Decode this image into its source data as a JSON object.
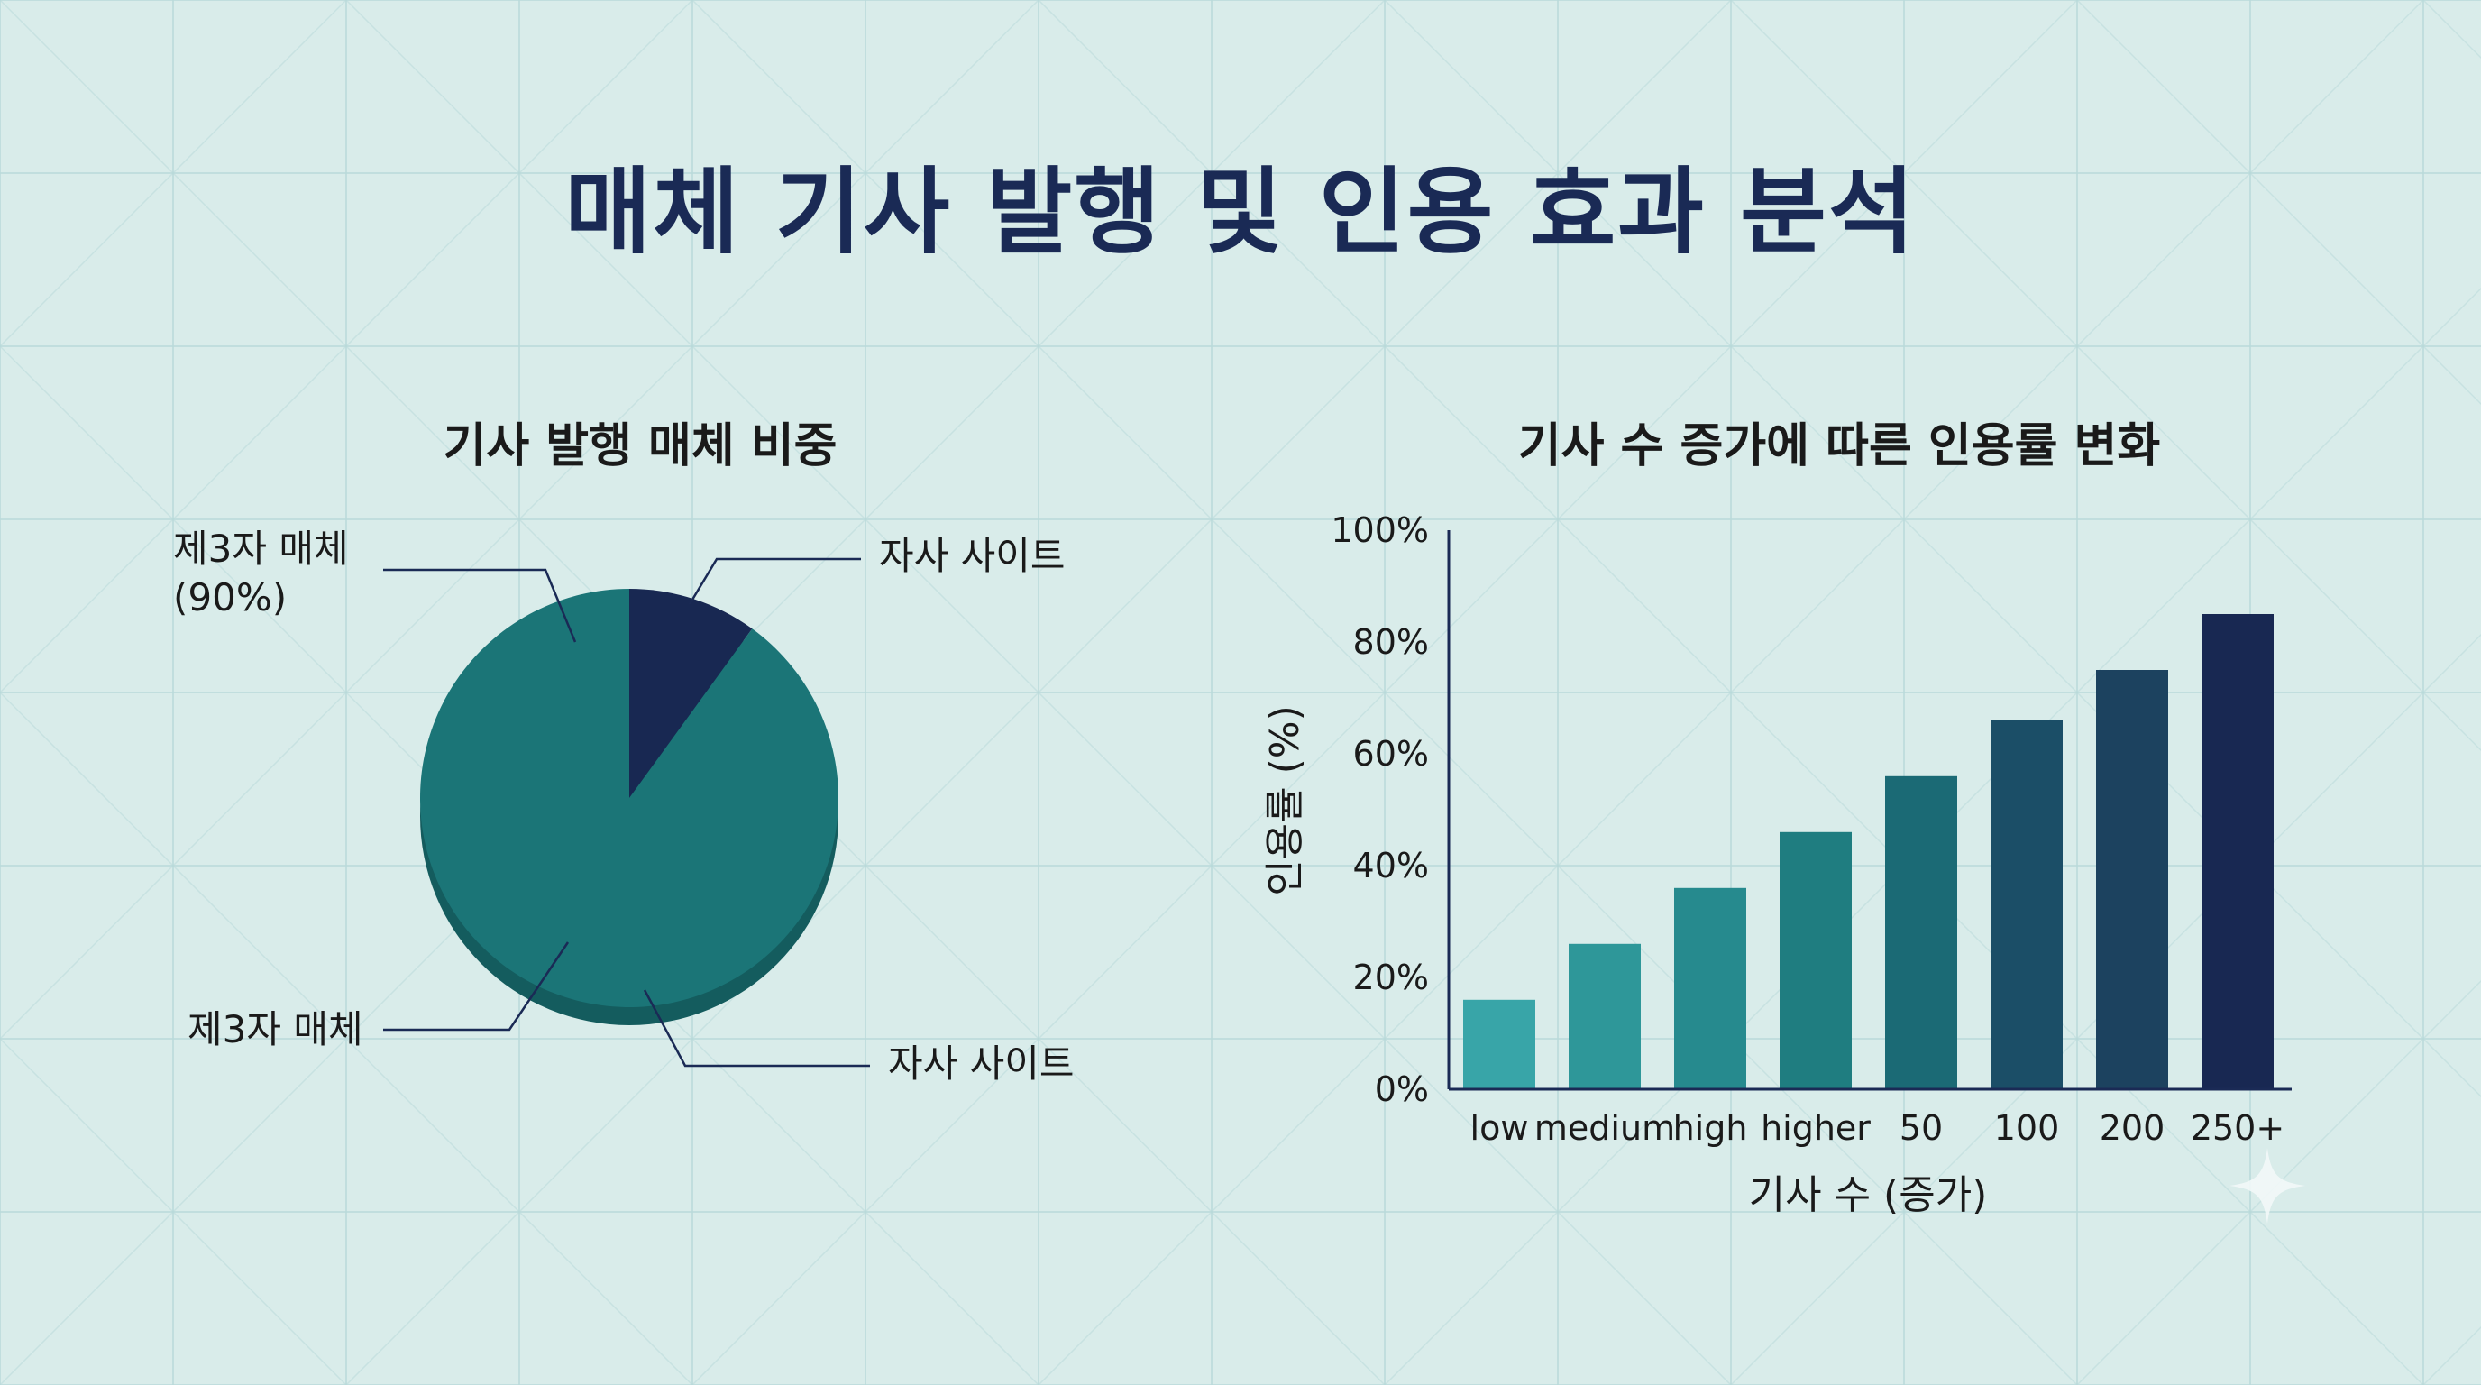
{
  "title": "매체 기사 발행 및 인용 효과 분석",
  "chart_data": [
    {
      "type": "pie",
      "title": "기사 발행 매체 비중",
      "slices": [
        {
          "name": "자사 사이트",
          "value": 10,
          "color": "#182852"
        },
        {
          "name": "제3자 매체",
          "value": 90,
          "color": "#1b7577"
        }
      ],
      "labels": {
        "top_left": [
          "제3자 매체",
          "(90%)"
        ],
        "top_right": "자사 사이트",
        "bottom_left": "제3자 매체",
        "bottom_right": "자사 사이트"
      }
    },
    {
      "type": "bar",
      "title": "기사 수 증가에 따른 인용률 변화",
      "categories": [
        "low",
        "medium",
        "high",
        "higher",
        "50",
        "100",
        "200",
        "250+"
      ],
      "values": [
        16,
        26,
        36,
        46,
        56,
        66,
        75,
        85
      ],
      "colors": [
        "#38a5a8",
        "#2e9799",
        "#268a8e",
        "#1f7d80",
        "#1b6a75",
        "#1b4e67",
        "#1c425f",
        "#182852"
      ],
      "xlabel": "기사 수 (증가)",
      "ylabel": "인용률 (%)",
      "ylim": [
        0,
        100
      ],
      "yticks": [
        "0%",
        "20%",
        "40%",
        "60%",
        "80%",
        "100%"
      ],
      "grid": false
    }
  ]
}
